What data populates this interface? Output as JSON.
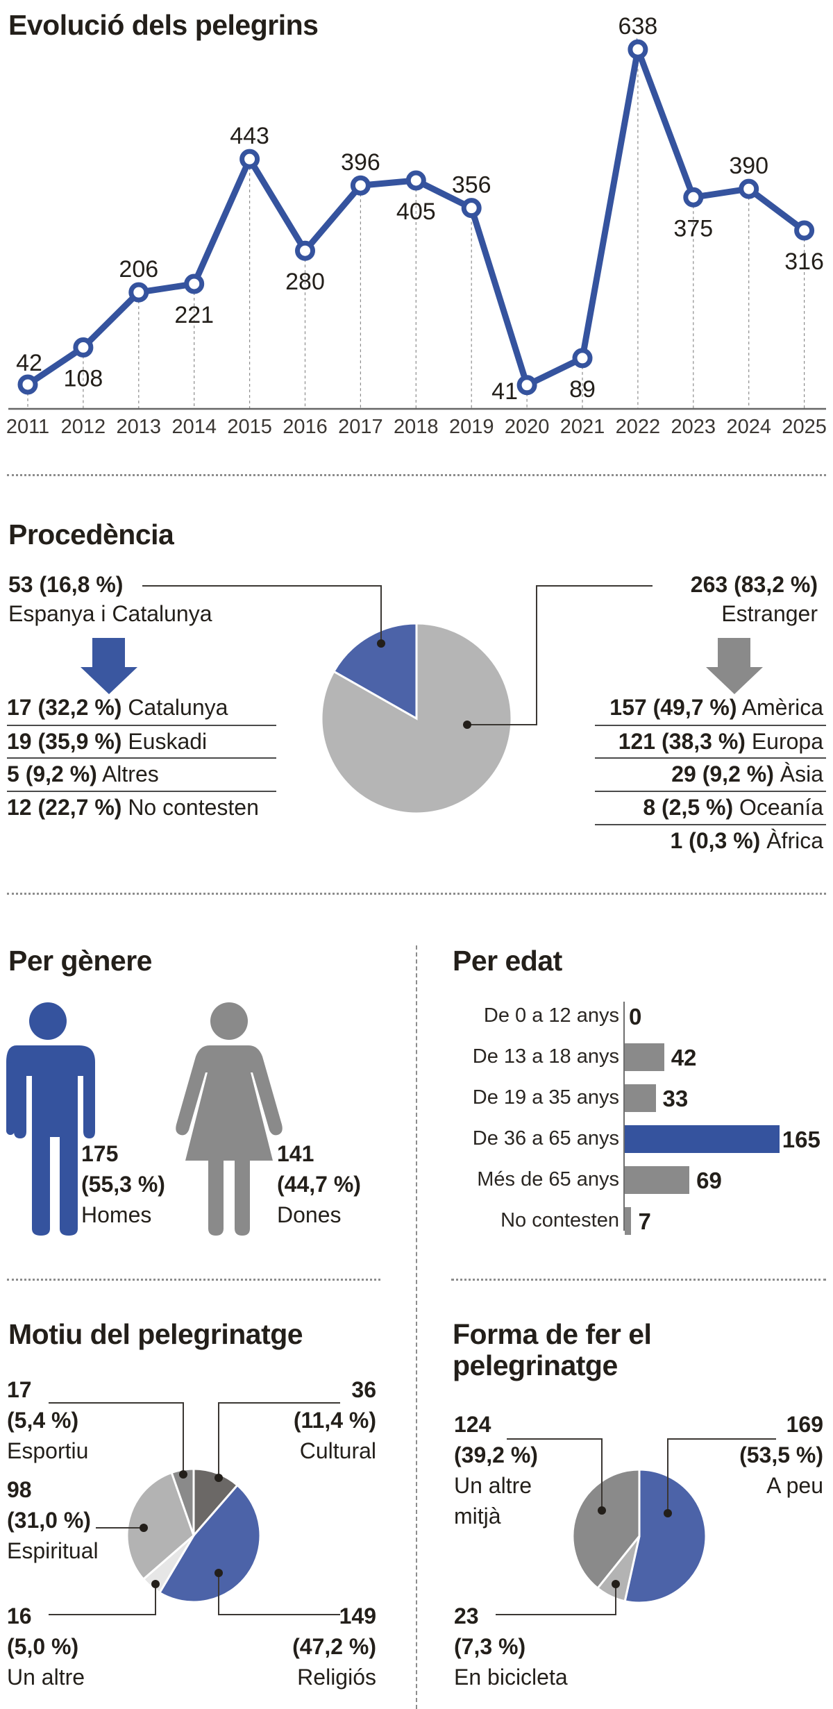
{
  "colors": {
    "blue": "#35539e",
    "blue_pie": "#4c63a8",
    "gray_dark": "#6b6866",
    "gray_mid": "#8a8a8a",
    "gray_light": "#b3b3b3",
    "gray_pale": "#e6e6e6",
    "text": "#231f1a"
  },
  "evolution": {
    "title": "Evolució dels pelegrins"
  },
  "origin": {
    "title": "Procedència",
    "spain": {
      "value_label": "53 (16,8 %)",
      "label": "Espanya i Catalunya"
    },
    "foreign": {
      "value_label": "263 (83,2 %)",
      "label": "Estranger"
    },
    "spain_breakdown": [
      {
        "value": "17 (32,2 %)",
        "label": "Catalunya"
      },
      {
        "value": "19 (35,9 %)",
        "label": "Euskadi"
      },
      {
        "value": "5 (9,2 %)",
        "label": "Altres"
      },
      {
        "value": "12 (22,7 %)",
        "label": "No contesten"
      }
    ],
    "foreign_breakdown": [
      {
        "value": "157 (49,7 %)",
        "label": "Amèrica"
      },
      {
        "value": "121 (38,3 %)",
        "label": "Europa"
      },
      {
        "value": "29 (9,2 %)",
        "label": "Àsia"
      },
      {
        "value": "8 (2,5 %)",
        "label": "Oceanía"
      },
      {
        "value": "1 (0,3 %)",
        "label": "Àfrica"
      }
    ]
  },
  "gender": {
    "title": "Per gènere",
    "men": {
      "count": "175",
      "pct": "(55,3 %)",
      "label": "Homes"
    },
    "women": {
      "count": "141",
      "pct": "(44,7 %)",
      "label": "Dones"
    }
  },
  "age": {
    "title": "Per edat",
    "rows": [
      {
        "label": "De 0 a 12 anys",
        "value": "0"
      },
      {
        "label": "De 13 a 18 anys",
        "value": "42"
      },
      {
        "label": "De 19 a 35 anys",
        "value": "33"
      },
      {
        "label": "De 36 a 65 anys",
        "value": "165"
      },
      {
        "label": "Més de 65 anys",
        "value": "69"
      },
      {
        "label": "No contesten",
        "value": "7"
      }
    ]
  },
  "motive": {
    "title": "Motiu del pelegrinatge",
    "items": {
      "esportiu": {
        "count": "17",
        "pct": "(5,4 %)",
        "label": "Esportiu"
      },
      "cultural": {
        "count": "36",
        "pct": "(11,4 %)",
        "label": "Cultural"
      },
      "espiritual": {
        "count": "98",
        "pct": "(31,0 %)",
        "label": "Espiritual"
      },
      "altre": {
        "count": "16",
        "pct": "(5,0 %)",
        "label": "Un altre"
      },
      "religios": {
        "count": "149",
        "pct": "(47,2 %)",
        "label": "Religiós"
      }
    }
  },
  "mode": {
    "title_line1": "Forma de fer el",
    "title_line2": "pelegrinatge",
    "items": {
      "altre": {
        "count": "124",
        "pct": "(39,2 %)",
        "label1": "Un altre",
        "label2": "mitjà"
      },
      "peu": {
        "count": "169",
        "pct": "(53,5 %)",
        "label": "A peu"
      },
      "bici": {
        "count": "23",
        "pct": "(7,3 %)",
        "label": "En bicicleta"
      }
    }
  },
  "chart_data": [
    {
      "type": "line",
      "title": "Evolució dels pelegrins",
      "x": [
        "2011",
        "2012",
        "2013",
        "2014",
        "2015",
        "2016",
        "2017",
        "2018",
        "2019",
        "2020",
        "2021",
        "2022",
        "2023",
        "2024",
        "2025"
      ],
      "values": [
        42,
        108,
        206,
        221,
        443,
        280,
        396,
        405,
        356,
        41,
        89,
        638,
        375,
        390,
        316
      ],
      "xlabel": "",
      "ylabel": "",
      "grid": "vertical dashed per year",
      "ylim": [
        0,
        650
      ]
    },
    {
      "type": "pie",
      "title": "Procedència",
      "categories": [
        "Espanya i Catalunya",
        "Estranger"
      ],
      "values": [
        53,
        263
      ],
      "percent": [
        16.8,
        83.2
      ],
      "breakdowns": {
        "Espanya i Catalunya": {
          "categories": [
            "Catalunya",
            "Euskadi",
            "Altres",
            "No contesten"
          ],
          "values": [
            17,
            19,
            5,
            12
          ],
          "percent": [
            32.2,
            35.9,
            9.2,
            22.7
          ]
        },
        "Estranger": {
          "categories": [
            "Amèrica",
            "Europa",
            "Àsia",
            "Oceanía",
            "Àfrica"
          ],
          "values": [
            157,
            121,
            29,
            8,
            1
          ],
          "percent": [
            49.7,
            38.3,
            9.2,
            2.5,
            0.3
          ]
        }
      }
    },
    {
      "type": "bar",
      "title": "Per gènere",
      "categories": [
        "Homes",
        "Dones"
      ],
      "values": [
        175,
        141
      ],
      "percent": [
        55.3,
        44.7
      ]
    },
    {
      "type": "bar",
      "title": "Per edat",
      "orientation": "horizontal",
      "categories": [
        "De 0 a 12 anys",
        "De 13 a 18 anys",
        "De 19 a 35 anys",
        "De 36 a 65 anys",
        "Més de 65 anys",
        "No contesten"
      ],
      "values": [
        0,
        42,
        33,
        165,
        69,
        7
      ]
    },
    {
      "type": "pie",
      "title": "Motiu del pelegrinatge",
      "categories": [
        "Cultural",
        "Religiós",
        "Un altre",
        "Espiritual",
        "Esportiu"
      ],
      "values": [
        36,
        149,
        16,
        98,
        17
      ],
      "percent": [
        11.4,
        47.2,
        5.0,
        31.0,
        5.4
      ]
    },
    {
      "type": "pie",
      "title": "Forma de fer el pelegrinatge",
      "categories": [
        "A peu",
        "En bicicleta",
        "Un altre mitjà"
      ],
      "values": [
        169,
        23,
        124
      ],
      "percent": [
        53.5,
        7.3,
        39.2
      ]
    }
  ]
}
